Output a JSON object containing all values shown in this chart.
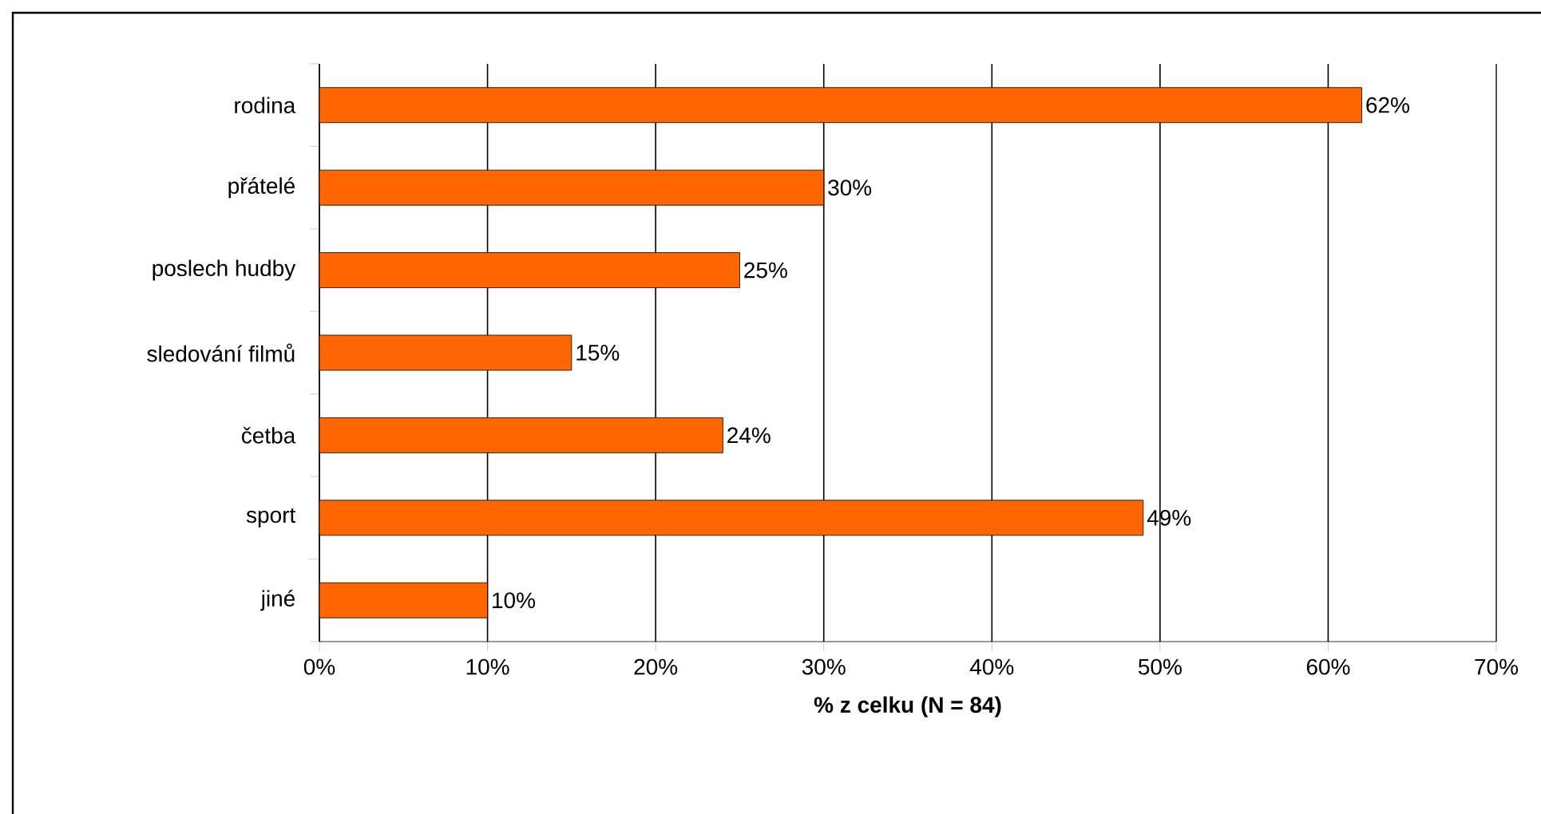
{
  "chart_data": {
    "type": "bar",
    "orientation": "horizontal",
    "xlabel": "% z celku (N = 84)",
    "categories": [
      "rodina",
      "přátelé",
      "poslech hudby",
      "sledování filmů",
      "četba",
      "sport",
      "jiné"
    ],
    "values": [
      62,
      30,
      25,
      15,
      24,
      49,
      10
    ],
    "value_labels": [
      "62%",
      "30%",
      "25%",
      "15%",
      "24%",
      "49%",
      "10%"
    ],
    "color": "#ff6600",
    "xlim": [
      0,
      70
    ],
    "xticks": [
      {
        "value": 0,
        "label": "0%"
      },
      {
        "value": 10,
        "label": "10%"
      },
      {
        "value": 20,
        "label": "20%"
      },
      {
        "value": 30,
        "label": "30%"
      },
      {
        "value": 40,
        "label": "40%"
      },
      {
        "value": 50,
        "label": "50%"
      },
      {
        "value": 60,
        "label": "60%"
      },
      {
        "value": 70,
        "label": "70%"
      }
    ],
    "grid": "x"
  }
}
